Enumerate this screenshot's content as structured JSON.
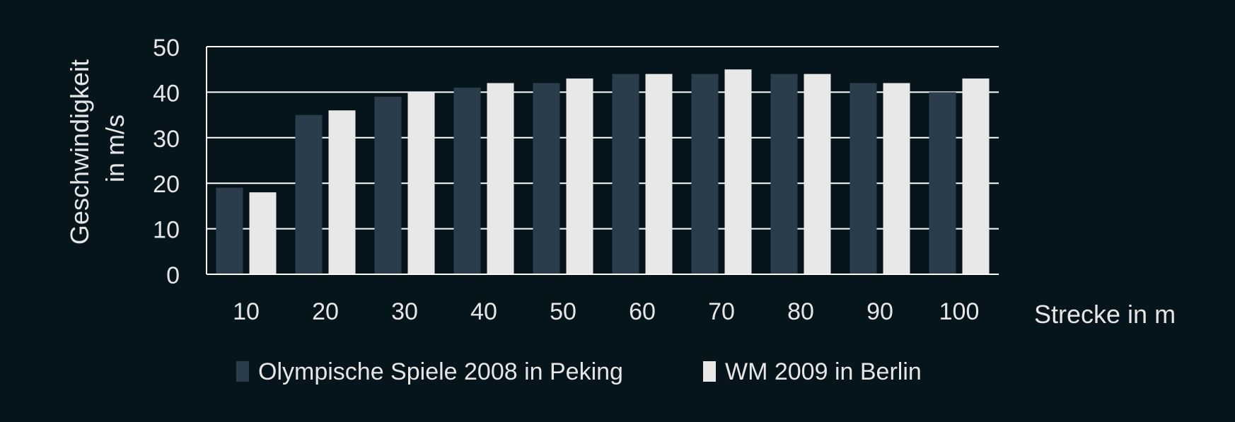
{
  "chart_data": {
    "type": "bar",
    "xlabel": "Strecke in m",
    "ylabel": "Geschwindigkeit in m/s",
    "ylabel_lines": [
      "Geschwindigkeit",
      "in m/s"
    ],
    "ylim": [
      0,
      50
    ],
    "yticks": [
      0,
      10,
      20,
      30,
      40,
      50
    ],
    "categories": [
      "10",
      "20",
      "30",
      "40",
      "50",
      "60",
      "70",
      "80",
      "90",
      "100"
    ],
    "series": [
      {
        "name": "Olympische Spiele 2008 in Peking",
        "color": "#2b3d4a",
        "values": [
          19,
          35,
          39,
          41,
          42,
          44,
          44,
          44,
          42,
          40
        ]
      },
      {
        "name": "WM 2009 in Berlin",
        "color": "#e8e8e8",
        "values": [
          18,
          36,
          40,
          42,
          43,
          44,
          45,
          44,
          42,
          43
        ]
      }
    ],
    "grid": true,
    "legend_position": "bottom",
    "colors": {
      "background": "#06151b",
      "text": "#e6e6e6",
      "grid": "#ffffff"
    }
  }
}
